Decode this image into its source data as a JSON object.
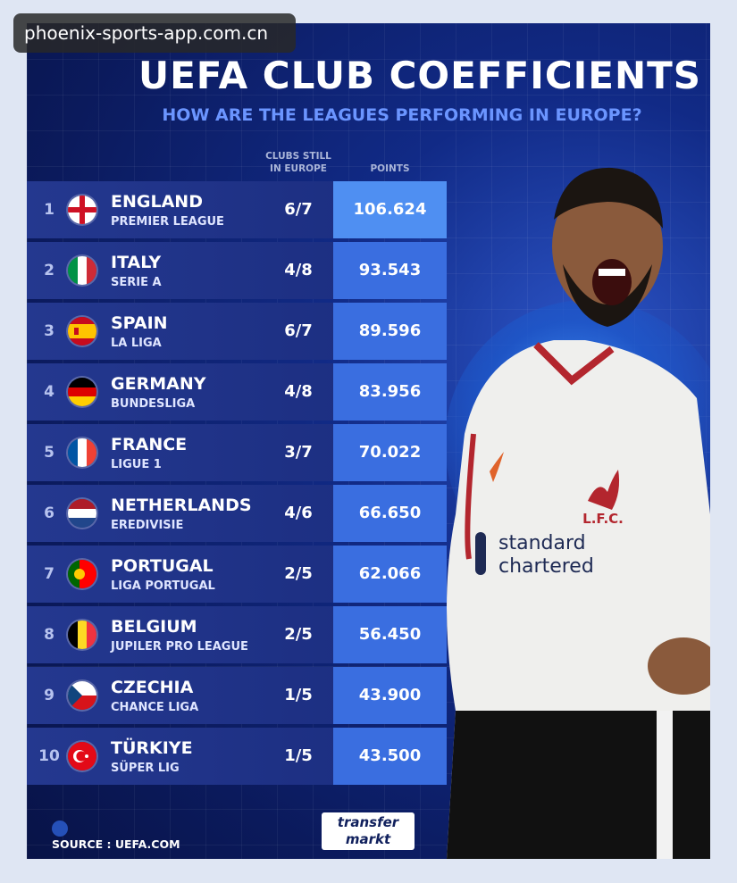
{
  "watermark": "phoenix-sports-app.com.cn",
  "title": "UEFA CLUB COEFFICIENTS",
  "subtitle": "HOW ARE THE LEAGUES PERFORMING IN EUROPE?",
  "columns": {
    "clubs_line1": "CLUBS STILL",
    "clubs_line2": "IN EUROPE",
    "points": "POINTS"
  },
  "rows": [
    {
      "rank": "1",
      "country": "ENGLAND",
      "league": "PREMIER LEAGUE",
      "clubs": "6/7",
      "points": "106.624",
      "flag": "england"
    },
    {
      "rank": "2",
      "country": "ITALY",
      "league": "SERIE A",
      "clubs": "4/8",
      "points": "93.543",
      "flag": "italy"
    },
    {
      "rank": "3",
      "country": "SPAIN",
      "league": "LA LIGA",
      "clubs": "6/7",
      "points": "89.596",
      "flag": "spain"
    },
    {
      "rank": "4",
      "country": "GERMANY",
      "league": "BUNDESLIGA",
      "clubs": "4/8",
      "points": "83.956",
      "flag": "germany"
    },
    {
      "rank": "5",
      "country": "FRANCE",
      "league": "LIGUE 1",
      "clubs": "3/7",
      "points": "70.022",
      "flag": "france"
    },
    {
      "rank": "6",
      "country": "NETHERLANDS",
      "league": "EREDIVISIE",
      "clubs": "4/6",
      "points": "66.650",
      "flag": "netherlands"
    },
    {
      "rank": "7",
      "country": "PORTUGAL",
      "league": "LIGA PORTUGAL",
      "clubs": "2/5",
      "points": "62.066",
      "flag": "portugal"
    },
    {
      "rank": "8",
      "country": "BELGIUM",
      "league": "JUPILER PRO LEAGUE",
      "clubs": "2/5",
      "points": "56.450",
      "flag": "belgium"
    },
    {
      "rank": "9",
      "country": "CZECHIA",
      "league": "CHANCE LIGA",
      "clubs": "1/5",
      "points": "43.900",
      "flag": "czechia"
    },
    {
      "rank": "10",
      "country": "TÜRKIYE",
      "league": "SÜPER LIG",
      "clubs": "1/5",
      "points": "43.500",
      "flag": "turkiye"
    }
  ],
  "source": "SOURCE : UEFA.COM",
  "logo": {
    "line1": "transfer",
    "line2": "markt"
  },
  "shirt": {
    "sponsor_line1": "standard",
    "sponsor_line2": "chartered",
    "crest": "L.F.C."
  },
  "colors": {
    "background": "#0b1a5c",
    "accent": "#3a6ee0",
    "subtitle": "#6b95ff"
  }
}
